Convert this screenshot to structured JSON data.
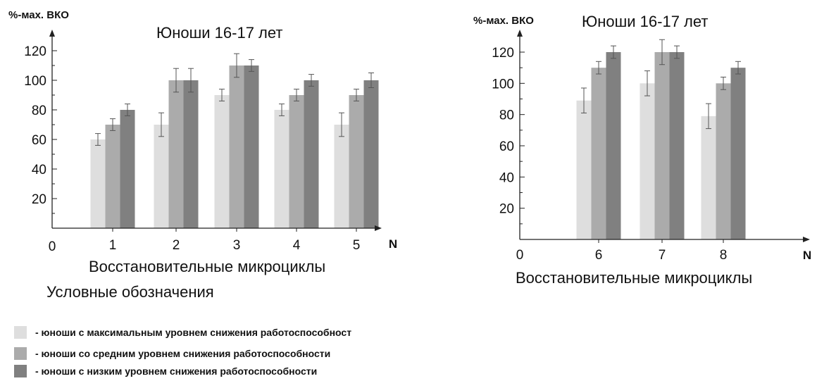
{
  "chart_data": [
    {
      "type": "bar",
      "title": "Юноши 16-17 лет",
      "ylabel": "%-мах. ВКО",
      "xlabel": "Восстановительные микроциклы",
      "x_axis_letter": "N",
      "origin_label": "0",
      "ylim": [
        0,
        130
      ],
      "yticks": [
        20,
        40,
        60,
        80,
        100,
        120
      ],
      "categories": [
        "1",
        "2",
        "3",
        "4",
        "5"
      ],
      "series": [
        {
          "color": "#dedede",
          "values": [
            60,
            70,
            90,
            80,
            70
          ],
          "errors": [
            4,
            8,
            4,
            4,
            8
          ]
        },
        {
          "color": "#ababab",
          "values": [
            70,
            100,
            110,
            90,
            90
          ],
          "errors": [
            4,
            8,
            8,
            4,
            4
          ]
        },
        {
          "color": "#808080",
          "values": [
            80,
            100,
            110,
            100,
            100
          ],
          "errors": [
            4,
            8,
            4,
            4,
            5
          ]
        }
      ]
    },
    {
      "type": "bar",
      "title": "Юноши 16-17 лет",
      "ylabel": "%-мах. ВКО",
      "xlabel": "Восстановительные микроциклы",
      "x_axis_letter": "N",
      "origin_label": "0",
      "ylim": [
        0,
        130
      ],
      "yticks": [
        20,
        40,
        60,
        80,
        100,
        120
      ],
      "categories": [
        "6",
        "7",
        "8"
      ],
      "series": [
        {
          "color": "#dedede",
          "values": [
            89,
            100,
            79
          ],
          "errors": [
            8,
            8,
            8
          ]
        },
        {
          "color": "#ababab",
          "values": [
            110,
            120,
            100
          ],
          "errors": [
            4,
            8,
            4
          ]
        },
        {
          "color": "#808080",
          "values": [
            120,
            120,
            110
          ],
          "errors": [
            4,
            4,
            4
          ]
        }
      ]
    }
  ],
  "legend": {
    "title": "Условные обозначения",
    "items": [
      {
        "color": "#dedede",
        "label": "- юноши с максимальным уровнем снижения работоспособност"
      },
      {
        "color": "#ababab",
        "label": "- юноши со средним уровнем снижения работоспособности"
      },
      {
        "color": "#808080",
        "label": "- юноши с низким уровнем снижения работоспособности"
      }
    ]
  }
}
